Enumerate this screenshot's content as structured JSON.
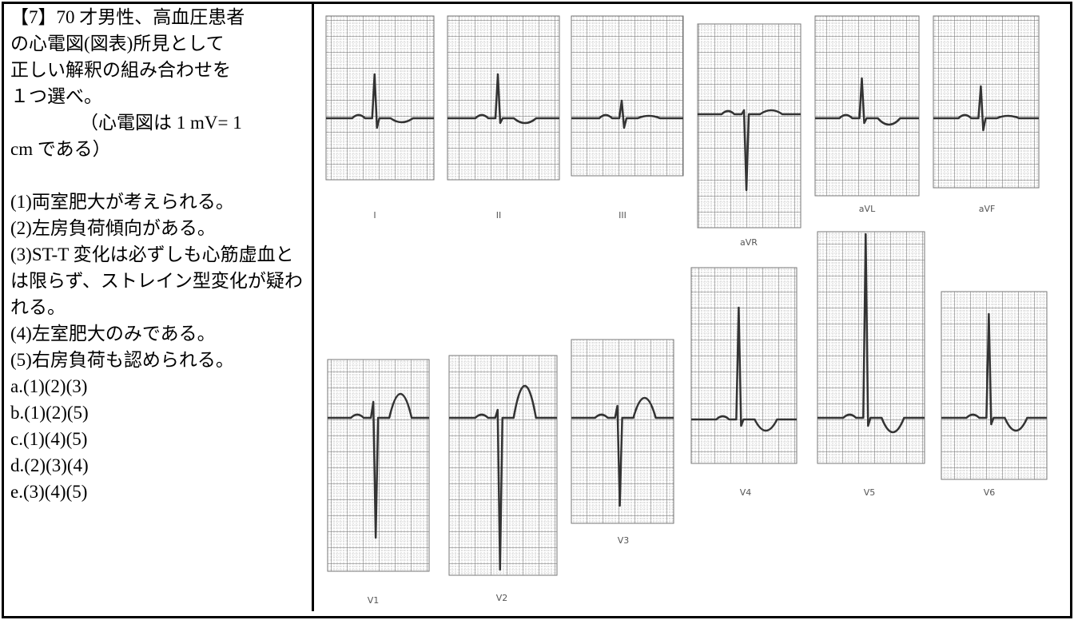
{
  "question": {
    "lines": [
      "【7】70 才男性、高血圧患者",
      "の心電図(図表)所見として",
      "正しい解釈の組み合わせを",
      "１つ選べ。"
    ],
    "note": [
      "（心電図は 1 mV= 1",
      "cm である）"
    ]
  },
  "options": [
    "(1)両室肥大が考えられる。",
    "(2)左房負荷傾向がある。",
    "(3)ST-T 変化は必ずしも心筋虚血とは限らず、ストレイン型変化が疑われる。",
    "(4)左室肥大のみである。",
    "(5)右房負荷も認められる。"
  ],
  "answers": [
    "a.(1)(2)(3)",
    "b.(1)(2)(5)",
    "c.(1)(4)(5)",
    "d.(2)(3)(4)",
    "e.(3)(4)(5)"
  ],
  "leads": [
    "I",
    "II",
    "III",
    "aVR",
    "aVL",
    "aVF",
    "V1",
    "V2",
    "V3",
    "V4",
    "V5",
    "V6"
  ]
}
